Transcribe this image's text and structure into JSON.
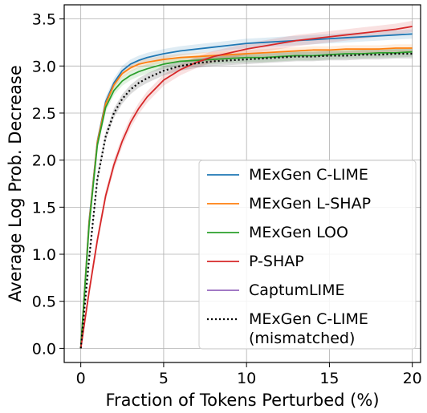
{
  "chart_data": {
    "type": "line",
    "title": "",
    "xlabel": "Fraction of Tokens Perturbed (%)",
    "ylabel": "Average Log Prob. Decrease",
    "xlim": [
      -1,
      20.5
    ],
    "ylim": [
      -0.15,
      3.65
    ],
    "xticks": [
      0,
      5,
      10,
      15,
      20
    ],
    "yticks": [
      0.0,
      0.5,
      1.0,
      1.5,
      2.0,
      2.5,
      3.0,
      3.5
    ],
    "xtick_labels": [
      "0",
      "5",
      "10",
      "15",
      "20"
    ],
    "ytick_labels": [
      "0.0",
      "0.5",
      "1.0",
      "1.5",
      "2.0",
      "2.5",
      "3.0",
      "3.5"
    ],
    "grid": true,
    "legend_position": "lower right",
    "series": [
      {
        "name": "MExGen C-LIME",
        "color": "#1f77b4",
        "style": "solid",
        "band": 0.05,
        "x": [
          0,
          0.5,
          1,
          1.5,
          2,
          2.5,
          3,
          3.5,
          4,
          5,
          6,
          7,
          8,
          9,
          10,
          11,
          12,
          13,
          14,
          15,
          16,
          17,
          18,
          19,
          20
        ],
        "values": [
          0,
          1.35,
          2.2,
          2.62,
          2.82,
          2.95,
          3.02,
          3.06,
          3.09,
          3.13,
          3.16,
          3.18,
          3.2,
          3.22,
          3.24,
          3.25,
          3.26,
          3.27,
          3.28,
          3.29,
          3.3,
          3.31,
          3.32,
          3.33,
          3.34
        ]
      },
      {
        "name": "MExGen L-SHAP",
        "color": "#ff7f0e",
        "style": "solid",
        "band": 0.04,
        "x": [
          0,
          0.5,
          1,
          1.5,
          2,
          2.5,
          3,
          3.5,
          4,
          5,
          6,
          7,
          8,
          9,
          10,
          11,
          12,
          13,
          14,
          15,
          16,
          17,
          18,
          19,
          20
        ],
        "values": [
          0,
          1.33,
          2.19,
          2.6,
          2.8,
          2.92,
          2.98,
          3.02,
          3.04,
          3.07,
          3.09,
          3.1,
          3.11,
          3.12,
          3.13,
          3.14,
          3.15,
          3.16,
          3.17,
          3.17,
          3.18,
          3.18,
          3.18,
          3.19,
          3.19
        ]
      },
      {
        "name": "MExGen LOO",
        "color": "#2ca02c",
        "style": "solid",
        "band": 0.05,
        "x": [
          0,
          0.5,
          1,
          1.5,
          2,
          2.5,
          3,
          3.5,
          4,
          5,
          6,
          7,
          8,
          9,
          10,
          11,
          12,
          13,
          14,
          15,
          16,
          17,
          18,
          19,
          20
        ],
        "values": [
          0,
          1.3,
          2.16,
          2.56,
          2.74,
          2.84,
          2.9,
          2.94,
          2.97,
          3.02,
          3.05,
          3.06,
          3.07,
          3.08,
          3.09,
          3.09,
          3.1,
          3.11,
          3.11,
          3.12,
          3.13,
          3.13,
          3.14,
          3.14,
          3.15
        ]
      },
      {
        "name": "P-SHAP",
        "color": "#d62728",
        "style": "solid",
        "band": 0.06,
        "x": [
          0,
          0.5,
          1,
          1.5,
          2,
          2.5,
          3,
          3.5,
          4,
          5,
          6,
          7,
          8,
          9,
          10,
          11,
          12,
          13,
          14,
          15,
          16,
          17,
          18,
          19,
          20
        ],
        "values": [
          0,
          0.6,
          1.15,
          1.62,
          1.95,
          2.2,
          2.4,
          2.55,
          2.67,
          2.85,
          2.96,
          3.04,
          3.1,
          3.14,
          3.18,
          3.21,
          3.24,
          3.27,
          3.29,
          3.31,
          3.33,
          3.35,
          3.37,
          3.39,
          3.42
        ]
      },
      {
        "name": "CaptumLIME",
        "color": "#9467bd",
        "style": "solid",
        "band": 0,
        "x": [],
        "values": []
      },
      {
        "name": "MExGen C-LIME\n(mismatched)",
        "color": "#000000",
        "style": "dotted",
        "band": 0.05,
        "x": [
          0,
          0.5,
          1,
          1.5,
          2,
          2.5,
          3,
          3.5,
          4,
          5,
          6,
          7,
          8,
          9,
          10,
          11,
          12,
          13,
          14,
          15,
          16,
          17,
          18,
          19,
          20
        ],
        "values": [
          0,
          0.95,
          1.8,
          2.25,
          2.5,
          2.65,
          2.75,
          2.82,
          2.87,
          2.95,
          3.0,
          3.03,
          3.05,
          3.06,
          3.07,
          3.08,
          3.09,
          3.1,
          3.1,
          3.11,
          3.11,
          3.12,
          3.12,
          3.13,
          3.13
        ]
      }
    ]
  }
}
